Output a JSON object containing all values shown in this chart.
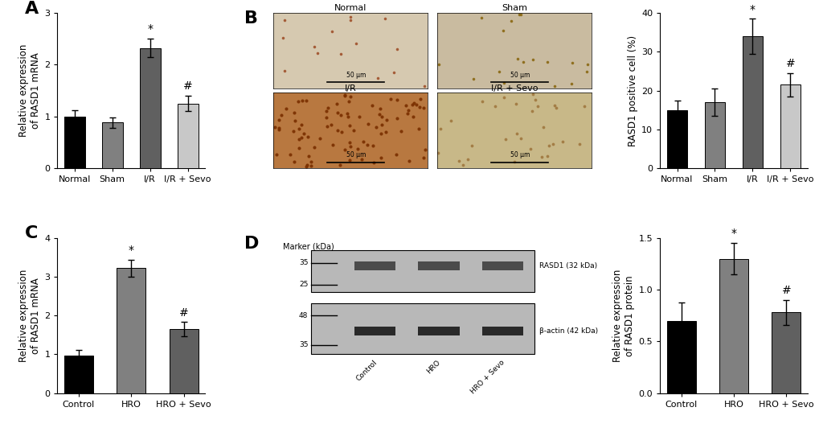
{
  "panel_A": {
    "categories": [
      "Normal",
      "Sham",
      "I/R",
      "I/R + Sevo"
    ],
    "values": [
      1.0,
      0.88,
      2.32,
      1.25
    ],
    "errors": [
      0.12,
      0.1,
      0.18,
      0.15
    ],
    "colors": [
      "#000000",
      "#808080",
      "#606060",
      "#c8c8c8"
    ],
    "ylabel": "Relative expression\nof RASD1 mRNA",
    "ylim": [
      0,
      3
    ],
    "yticks": [
      0,
      1,
      2,
      3
    ],
    "sig_labels": [
      "",
      "",
      "*",
      "#"
    ],
    "label": "A"
  },
  "panel_B_bar": {
    "categories": [
      "Normal",
      "Sham",
      "I/R",
      "I/R + Sevo"
    ],
    "values": [
      15.0,
      17.0,
      34.0,
      21.5
    ],
    "errors": [
      2.5,
      3.5,
      4.5,
      3.0
    ],
    "colors": [
      "#000000",
      "#808080",
      "#606060",
      "#c8c8c8"
    ],
    "ylabel": "RASD1 positive cell (%)",
    "ylim": [
      0,
      40
    ],
    "yticks": [
      0,
      10,
      20,
      30,
      40
    ],
    "sig_labels": [
      "",
      "",
      "*",
      "#"
    ],
    "label": "B"
  },
  "panel_C": {
    "categories": [
      "Control",
      "HRO",
      "HRO + Sevo"
    ],
    "values": [
      0.97,
      3.22,
      1.65
    ],
    "errors": [
      0.15,
      0.22,
      0.18
    ],
    "colors": [
      "#000000",
      "#808080",
      "#606060"
    ],
    "ylabel": "Relative expression\nof RASD1 mRNA",
    "ylim": [
      0,
      4
    ],
    "yticks": [
      0,
      1,
      2,
      3,
      4
    ],
    "sig_labels": [
      "",
      "*",
      "#"
    ],
    "label": "C"
  },
  "panel_D_bar": {
    "categories": [
      "Control",
      "HRO",
      "HRO + Sevo"
    ],
    "values": [
      0.7,
      1.3,
      0.78
    ],
    "errors": [
      0.18,
      0.15,
      0.12
    ],
    "colors": [
      "#000000",
      "#808080",
      "#606060"
    ],
    "ylabel": "Relative expression\nof RASD1 protein",
    "ylim": [
      0,
      1.5
    ],
    "yticks": [
      0.0,
      0.5,
      1.0,
      1.5
    ],
    "sig_labels": [
      "",
      "*",
      "#"
    ],
    "label": "D"
  },
  "wb_marker_label": "Marker (kDa)",
  "wb_band1_label": "RASD1 (32 kDa)",
  "wb_band2_label": "β-actin (42 kDa)",
  "wb_marker_vals_top": [
    "35",
    "25"
  ],
  "wb_marker_vals_bot": [
    "48",
    "35"
  ],
  "wb_xlabels": [
    "Control",
    "HRO",
    "HRO + Sevo"
  ],
  "img_titles_top": [
    "Normal",
    "Sham"
  ],
  "img_titles_bot": [
    "I/R",
    "I/R + Sevo"
  ],
  "scale_bar_text": "50 μm",
  "bg_color": "#ffffff",
  "panel_label_fontsize": 16,
  "axis_label_fontsize": 8.5,
  "tick_fontsize": 8,
  "sig_fontsize": 10,
  "bar_width": 0.55
}
